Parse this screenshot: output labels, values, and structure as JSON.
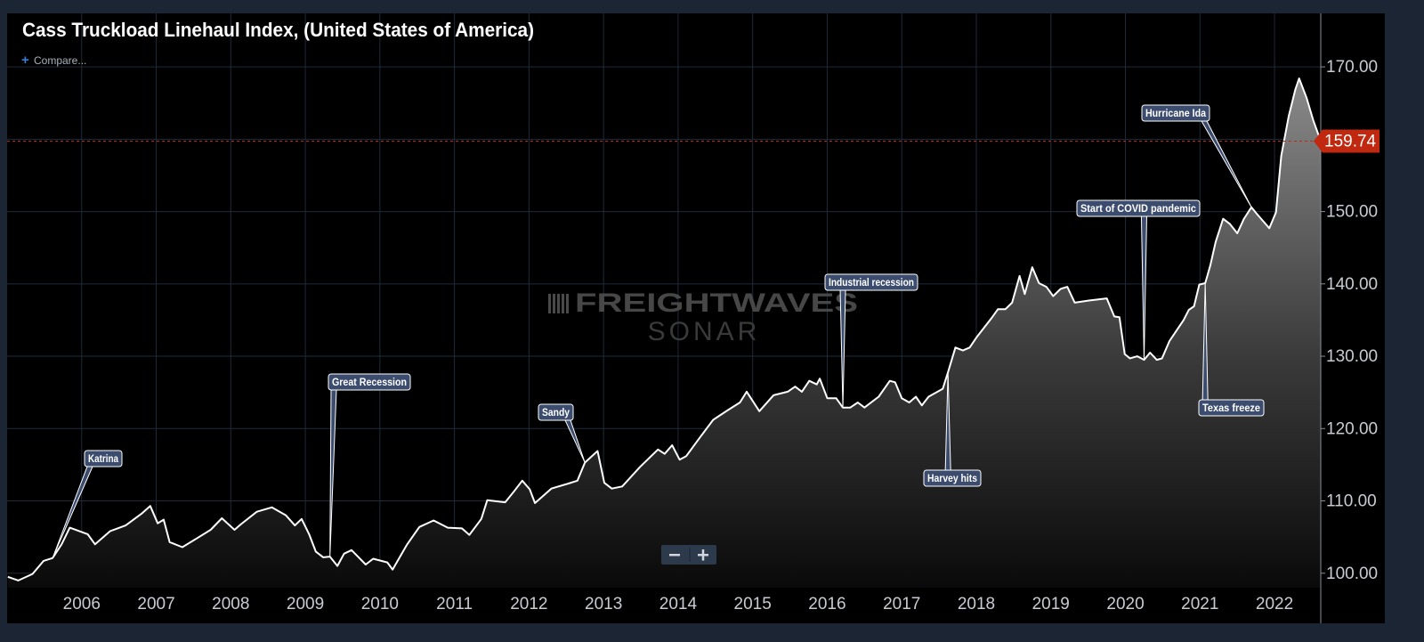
{
  "chart_data": {
    "type": "area",
    "title": "Cass Truckload Linehaul Index, (United States of America)",
    "compare_label": "Compare...",
    "watermark_brand": "FREIGHTWAVES",
    "watermark_product": "SONAR",
    "color": "#ffffff",
    "marker_color": "#c0280f",
    "grid": true,
    "xlim": [
      2005.0,
      2022.62
    ],
    "xticks": [
      2006,
      2007,
      2008,
      2009,
      2010,
      2011,
      2012,
      2013,
      2014,
      2015,
      2016,
      2017,
      2018,
      2019,
      2020,
      2021,
      2022
    ],
    "ylim": [
      98.0,
      177.4
    ],
    "yticks": [
      {
        "value": 100,
        "label": "100.00"
      },
      {
        "value": 110,
        "label": "110.00"
      },
      {
        "value": 120,
        "label": "120.00"
      },
      {
        "value": 130,
        "label": "130.00"
      },
      {
        "value": 140,
        "label": "140.00"
      },
      {
        "value": 150,
        "label": "150.00"
      },
      {
        "value": 160,
        "label": "160.00"
      },
      {
        "value": 170,
        "label": "170.00"
      }
    ],
    "x": [
      2005.01,
      2005.15,
      2005.34,
      2005.49,
      2005.61,
      2005.73,
      2005.84,
      2006.08,
      2006.18,
      2006.38,
      2006.59,
      2006.8,
      2006.92,
      2007.02,
      2007.1,
      2007.18,
      2007.35,
      2007.54,
      2007.73,
      2007.88,
      2008.05,
      2008.14,
      2008.35,
      2008.55,
      2008.74,
      2008.86,
      2008.95,
      2009.05,
      2009.14,
      2009.24,
      2009.33,
      2009.43,
      2009.52,
      2009.62,
      2009.81,
      2009.91,
      2010.1,
      2010.17,
      2010.36,
      2010.53,
      2010.72,
      2010.91,
      2011.1,
      2011.2,
      2011.36,
      2011.44,
      2011.68,
      2011.79,
      2011.91,
      2012.01,
      2012.08,
      2012.3,
      2012.53,
      2012.65,
      2012.75,
      2012.92,
      2013.01,
      2013.11,
      2013.25,
      2013.49,
      2013.73,
      2013.82,
      2013.92,
      2014.02,
      2014.11,
      2014.28,
      2014.47,
      2014.66,
      2014.83,
      2014.92,
      2015.09,
      2015.28,
      2015.47,
      2015.57,
      2015.66,
      2015.76,
      2015.86,
      2015.9,
      2016.0,
      2016.12,
      2016.21,
      2016.31,
      2016.41,
      2016.5,
      2016.69,
      2016.84,
      2016.91,
      2017.0,
      2017.1,
      2017.19,
      2017.27,
      2017.36,
      2017.55,
      2017.62,
      2017.72,
      2017.82,
      2017.91,
      2018.01,
      2018.2,
      2018.29,
      2018.39,
      2018.48,
      2018.58,
      2018.65,
      2018.75,
      2018.84,
      2018.94,
      2019.03,
      2019.13,
      2019.22,
      2019.32,
      2019.51,
      2019.75,
      2019.85,
      2019.92,
      2019.99,
      2020.06,
      2020.16,
      2020.25,
      2020.33,
      2020.42,
      2020.49,
      2020.59,
      2020.78,
      2020.85,
      2020.92,
      2020.99,
      2021.07,
      2021.14,
      2021.21,
      2021.31,
      2021.4,
      2021.5,
      2021.59,
      2021.69,
      2021.76,
      2021.93,
      2022.02,
      2022.09,
      2022.19,
      2022.28,
      2022.33,
      2022.43,
      2022.52,
      2022.62
    ],
    "values": [
      99.5,
      99.0,
      99.9,
      101.7,
      102.1,
      104.0,
      106.3,
      105.4,
      104.0,
      105.8,
      106.6,
      108.2,
      109.3,
      106.9,
      107.4,
      104.3,
      103.6,
      104.8,
      106.0,
      107.6,
      106.0,
      106.8,
      108.5,
      109.1,
      108.0,
      106.6,
      107.5,
      105.4,
      103.0,
      102.2,
      102.3,
      101.0,
      102.7,
      103.2,
      101.2,
      102.0,
      101.5,
      100.5,
      103.9,
      106.4,
      107.3,
      106.3,
      106.2,
      105.3,
      107.5,
      110.1,
      109.8,
      111.2,
      112.8,
      111.6,
      109.7,
      111.7,
      112.4,
      112.8,
      115.3,
      116.9,
      112.5,
      111.7,
      112.0,
      114.7,
      117.1,
      116.5,
      117.7,
      115.7,
      116.2,
      118.6,
      121.2,
      122.5,
      123.6,
      125.1,
      122.4,
      124.6,
      125.1,
      125.8,
      125.1,
      126.6,
      126.1,
      126.9,
      124.2,
      124.2,
      122.9,
      122.9,
      123.6,
      122.9,
      124.4,
      126.6,
      126.4,
      124.2,
      123.6,
      124.4,
      123.2,
      124.4,
      125.5,
      127.8,
      131.2,
      130.8,
      131.2,
      132.7,
      135.2,
      136.5,
      136.5,
      137.4,
      141.1,
      138.6,
      142.3,
      140.1,
      139.6,
      138.3,
      139.3,
      139.6,
      137.4,
      137.7,
      138.0,
      135.5,
      135.4,
      130.3,
      129.7,
      130.0,
      129.5,
      130.5,
      129.5,
      129.7,
      132.1,
      135.0,
      136.4,
      136.9,
      139.9,
      140.1,
      142.6,
      145.8,
      149.0,
      148.3,
      147.0,
      149.0,
      150.6,
      149.7,
      147.7,
      149.9,
      157.7,
      163.2,
      166.9,
      168.4,
      165.7,
      162.6,
      159.74
    ],
    "annotations": [
      {
        "text": "Katrina",
        "x": 2005.61
      },
      {
        "text": "Great Recession",
        "x": 2009.33
      },
      {
        "text": "Sandy",
        "x": 2012.75
      },
      {
        "text": "Industrial recession",
        "x": 2016.21
      },
      {
        "text": "Harvey hits",
        "x": 2017.62
      },
      {
        "text": "Start of COVID pandemic",
        "x": 2020.25
      },
      {
        "text": "Texas freeze",
        "x": 2021.07
      },
      {
        "text": "Hurricane Ida",
        "x": 2021.69
      }
    ]
  }
}
